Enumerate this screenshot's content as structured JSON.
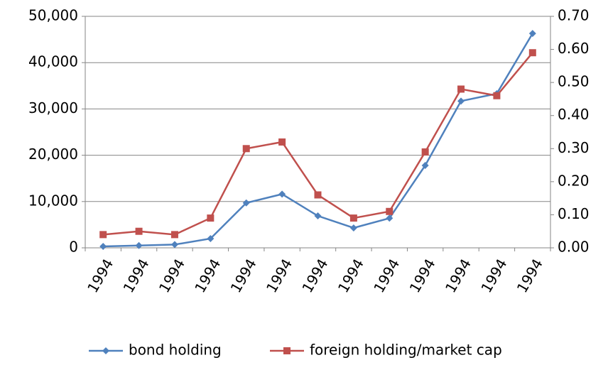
{
  "chart_data": {
    "type": "line",
    "categories": [
      "1994",
      "1994",
      "1994",
      "1994",
      "1994",
      "1994",
      "1994",
      "1994",
      "1994",
      "1994",
      "1994",
      "1994",
      "1994"
    ],
    "series": [
      {
        "name": "bond holding",
        "color": "#4f81bd",
        "marker": "diamond",
        "axis": "y",
        "values": [
          300,
          500,
          700,
          2000,
          9700,
          11600,
          6900,
          4300,
          6400,
          17800,
          31700,
          33300,
          46300
        ]
      },
      {
        "name": "foreign holding/market cap",
        "color": "#c0504d",
        "marker": "square",
        "axis": "y2",
        "values": [
          0.04,
          0.05,
          0.04,
          0.09,
          0.3,
          0.32,
          0.16,
          0.09,
          0.11,
          0.29,
          0.48,
          0.46,
          0.59
        ]
      }
    ],
    "ylim": [
      0,
      50000
    ],
    "yticks": [
      0,
      {
        "value": 10000,
        "label": "10,000"
      },
      {
        "value": 20000,
        "label": "20,000"
      },
      {
        "value": 30000,
        "label": "30,000"
      },
      {
        "value": 40000,
        "label": "40,000"
      },
      {
        "value": 50000,
        "label": "50,000"
      }
    ],
    "y2lim": [
      0,
      0.7
    ],
    "y2ticks": [
      {
        "value": 0,
        "label": "0.00"
      },
      {
        "value": 0.1,
        "label": "0.10"
      },
      {
        "value": 0.2,
        "label": "0.20"
      },
      {
        "value": 0.3,
        "label": "0.30"
      },
      {
        "value": 0.4,
        "label": "0.40"
      },
      {
        "value": 0.5,
        "label": "0.50"
      },
      {
        "value": 0.6,
        "label": "0.60"
      },
      {
        "value": 0.7,
        "label": "0.70"
      }
    ],
    "grid": true,
    "legend": "bottom"
  }
}
